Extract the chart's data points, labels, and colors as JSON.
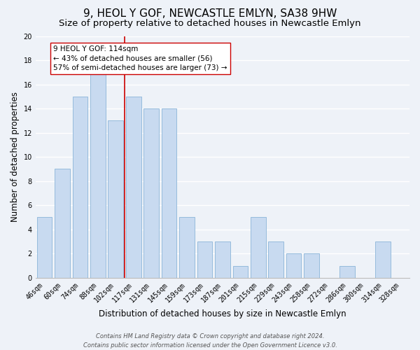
{
  "title": "9, HEOL Y GOF, NEWCASTLE EMLYN, SA38 9HW",
  "subtitle": "Size of property relative to detached houses in Newcastle Emlyn",
  "xlabel": "Distribution of detached houses by size in Newcastle Emlyn",
  "ylabel": "Number of detached properties",
  "categories": [
    "46sqm",
    "60sqm",
    "74sqm",
    "88sqm",
    "102sqm",
    "117sqm",
    "131sqm",
    "145sqm",
    "159sqm",
    "173sqm",
    "187sqm",
    "201sqm",
    "215sqm",
    "229sqm",
    "243sqm",
    "258sqm",
    "272sqm",
    "286sqm",
    "300sqm",
    "314sqm",
    "328sqm"
  ],
  "values": [
    5,
    9,
    15,
    17,
    13,
    15,
    14,
    14,
    5,
    3,
    3,
    1,
    5,
    3,
    2,
    2,
    0,
    1,
    0,
    3,
    0
  ],
  "bar_color": "#c8daf0",
  "bar_edge_color": "#8ab4d8",
  "ylim": [
    0,
    20
  ],
  "yticks": [
    0,
    2,
    4,
    6,
    8,
    10,
    12,
    14,
    16,
    18,
    20
  ],
  "property_line_index": 5,
  "property_line_color": "#cc0000",
  "annotation_line1": "9 HEOL Y GOF: 114sqm",
  "annotation_line2": "← 43% of detached houses are smaller (56)",
  "annotation_line3": "57% of semi-detached houses are larger (73) →",
  "footer_line1": "Contains HM Land Registry data © Crown copyright and database right 2024.",
  "footer_line2": "Contains public sector information licensed under the Open Government Licence v3.0.",
  "background_color": "#eef2f8",
  "plot_bg_color": "#eef2f8",
  "grid_color": "#ffffff",
  "title_fontsize": 11,
  "subtitle_fontsize": 9.5,
  "axis_label_fontsize": 8.5,
  "tick_fontsize": 7,
  "annotation_box_edgecolor": "#cc0000",
  "annotation_box_facecolor": "#ffffff"
}
